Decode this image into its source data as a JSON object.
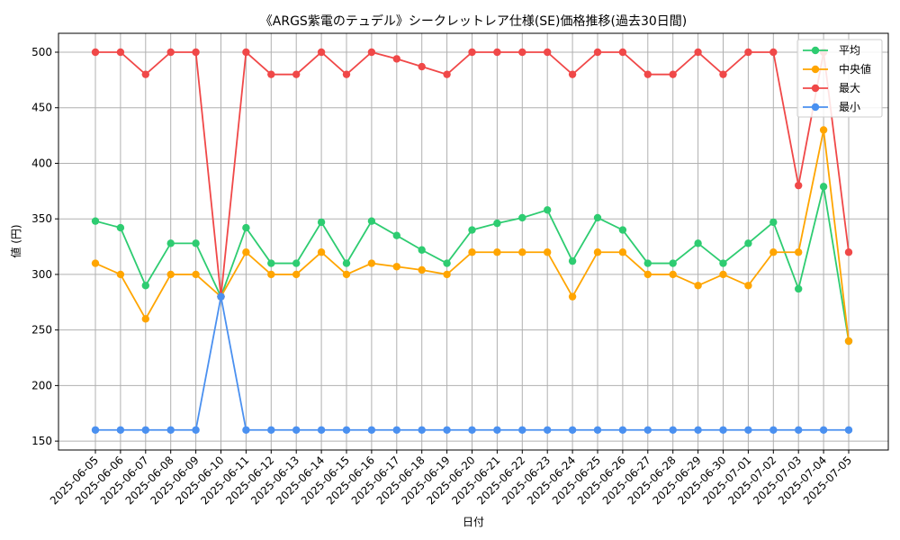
{
  "chart_data": {
    "type": "line",
    "title": "《ARGS紫電のテュデル》シークレットレア仕様(SE)価格推移(過去30日間)",
    "xlabel": "日付",
    "ylabel": "値 (円)",
    "ylim": [
      142,
      517
    ],
    "yticks": [
      150,
      200,
      250,
      300,
      350,
      400,
      450,
      500
    ],
    "grid": true,
    "legend_position": "top-right",
    "x": [
      "2025-06-05",
      "2025-06-06",
      "2025-06-07",
      "2025-06-08",
      "2025-06-09",
      "2025-06-10",
      "2025-06-11",
      "2025-06-12",
      "2025-06-13",
      "2025-06-14",
      "2025-06-15",
      "2025-06-16",
      "2025-06-17",
      "2025-06-18",
      "2025-06-19",
      "2025-06-20",
      "2025-06-21",
      "2025-06-22",
      "2025-06-23",
      "2025-06-24",
      "2025-06-25",
      "2025-06-26",
      "2025-06-27",
      "2025-06-28",
      "2025-06-29",
      "2025-06-30",
      "2025-07-01",
      "2025-07-02",
      "2025-07-03",
      "2025-07-04",
      "2025-07-05"
    ],
    "series": [
      {
        "name": "平均",
        "color": "#2ecc71",
        "values": [
          348,
          342,
          290,
          328,
          328,
          280,
          342,
          310,
          310,
          347,
          310,
          348,
          335,
          322,
          310,
          340,
          346,
          351,
          358,
          312,
          351,
          340,
          310,
          310,
          328,
          310,
          328,
          347,
          287,
          379,
          240
        ]
      },
      {
        "name": "中央値",
        "color": "#ffa500",
        "values": [
          310,
          300,
          260,
          300,
          300,
          280,
          320,
          300,
          300,
          320,
          300,
          310,
          307,
          304,
          300,
          320,
          320,
          320,
          320,
          280,
          320,
          320,
          300,
          300,
          290,
          300,
          290,
          320,
          320,
          430,
          240
        ]
      },
      {
        "name": "最大",
        "color": "#f04848",
        "values": [
          500,
          500,
          480,
          500,
          500,
          280,
          500,
          480,
          480,
          500,
          480,
          500,
          494,
          487,
          480,
          500,
          500,
          500,
          500,
          480,
          500,
          500,
          480,
          480,
          500,
          480,
          500,
          500,
          380,
          500,
          320
        ]
      },
      {
        "name": "最小",
        "color": "#4a90f0",
        "values": [
          160,
          160,
          160,
          160,
          160,
          280,
          160,
          160,
          160,
          160,
          160,
          160,
          160,
          160,
          160,
          160,
          160,
          160,
          160,
          160,
          160,
          160,
          160,
          160,
          160,
          160,
          160,
          160,
          160,
          160,
          160
        ]
      }
    ]
  }
}
